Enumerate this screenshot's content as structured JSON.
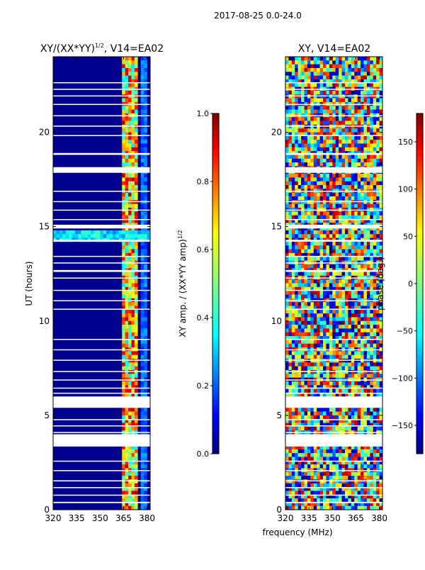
{
  "suptitle": "2017-08-25 0.0-24.0",
  "shared_xlabel": "frequency (MHz)",
  "chart_data": [
    {
      "type": "heatmap",
      "title": "XY/(XX*YY)",
      "title_superscript": "1/2",
      "title_suffix": ", V14=EA02",
      "ylabel": "UT (hours)",
      "xlim": [
        320,
        382
      ],
      "ylim": [
        0,
        24
      ],
      "xticks": [
        320,
        335,
        350,
        365,
        380
      ],
      "yticks": [
        0,
        5,
        10,
        15,
        20
      ],
      "quantity": "amplitude",
      "colorbar": {
        "label": "XY amp. / (XX*YY amp)",
        "label_superscript": "1/2",
        "range": [
          0.0,
          1.0
        ],
        "ticks": [
          "0.0",
          "0.2",
          "0.4",
          "0.6",
          "0.8",
          "1.0"
        ]
      }
    },
    {
      "type": "heatmap",
      "title": "XY, V14=EA02",
      "ylabel": "",
      "xlim": [
        320,
        382
      ],
      "ylim": [
        0,
        24
      ],
      "xticks": [
        320,
        335,
        350,
        365,
        380
      ],
      "yticks": [
        0,
        5,
        10,
        15,
        20
      ],
      "quantity": "phase",
      "colorbar": {
        "label": "phase (deg.)",
        "range": [
          -180,
          180
        ],
        "ticks": [
          "−150",
          "−100",
          "−50",
          "0",
          "50",
          "100",
          "150"
        ]
      }
    }
  ],
  "flagged_time_ranges_hours": [
    [
      0.35,
      0.42
    ],
    [
      0.75,
      0.8
    ],
    [
      1.15,
      1.2
    ],
    [
      1.5,
      1.56
    ],
    [
      2.05,
      2.1
    ],
    [
      2.55,
      2.6
    ],
    [
      3.35,
      4.0
    ],
    [
      4.08,
      4.12
    ],
    [
      4.42,
      4.47
    ],
    [
      4.75,
      4.8
    ],
    [
      5.4,
      6.0
    ],
    [
      6.15,
      6.2
    ],
    [
      6.42,
      6.47
    ],
    [
      6.85,
      6.9
    ],
    [
      7.3,
      7.35
    ],
    [
      7.9,
      7.95
    ],
    [
      8.45,
      8.5
    ],
    [
      9.0,
      9.05
    ],
    [
      10.6,
      10.65
    ],
    [
      11.05,
      11.1
    ],
    [
      11.6,
      11.65
    ],
    [
      12.25,
      12.3
    ],
    [
      12.6,
      12.7
    ],
    [
      13.05,
      13.1
    ],
    [
      13.4,
      13.45
    ],
    [
      14.2,
      14.3
    ],
    [
      14.9,
      15.1
    ],
    [
      15.35,
      15.4
    ],
    [
      15.85,
      15.9
    ],
    [
      16.3,
      16.35
    ],
    [
      16.85,
      16.9
    ],
    [
      17.85,
      18.15
    ],
    [
      18.8,
      18.9
    ],
    [
      19.8,
      19.85
    ],
    [
      20.3,
      20.35
    ],
    [
      20.85,
      20.9
    ],
    [
      21.45,
      21.5
    ],
    [
      21.9,
      21.95
    ],
    [
      22.25,
      22.3
    ],
    [
      22.6,
      22.65
    ]
  ]
}
